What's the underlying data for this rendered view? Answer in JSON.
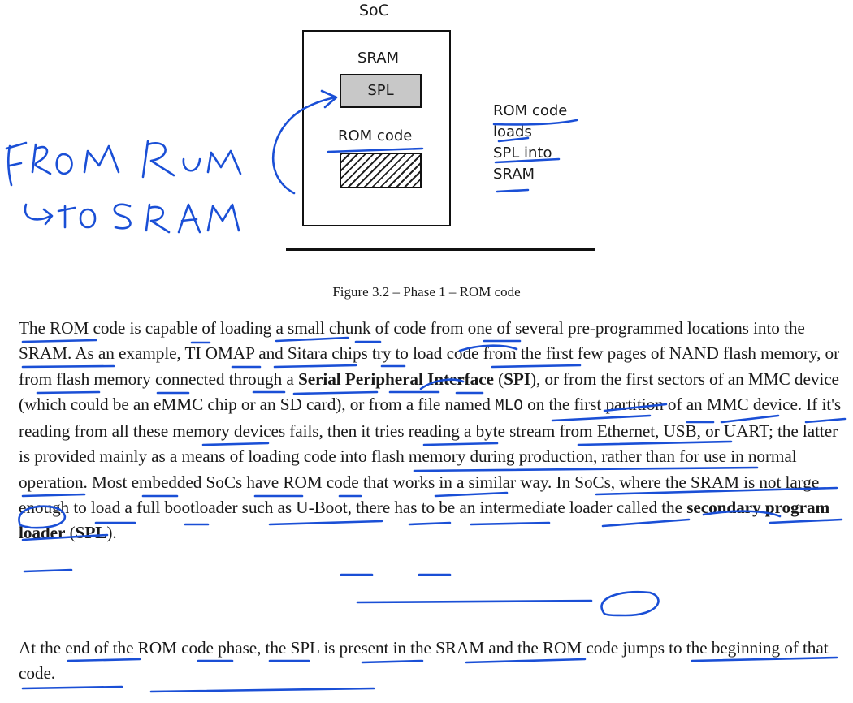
{
  "figure": {
    "soc_label": "SoC",
    "sram_label": "SRAM",
    "spl_label": "SPL",
    "rom_label": "ROM code",
    "side_note_lines": [
      "ROM code",
      "loads",
      "SPL into",
      "SRAM"
    ],
    "handwriting_note_lines": [
      "from ROM",
      "to SRAM"
    ]
  },
  "caption": "Figure 3.2 – Phase 1 – ROM code",
  "para1": {
    "text_a": "The ROM code is capable of loading a small chunk of code from one of several pre-programmed locations into the SRAM. As an example, TI OMAP and Sitara chips try to load code from the first few pages of NAND flash memory, or from flash memory connected through a ",
    "bold_a": "Serial Peripheral Interface",
    "text_b": " (",
    "bold_b": "SPI",
    "text_c": "), or from the first sectors of an MMC device (which could be an eMMC chip or an SD card), or from a file named ",
    "code": "MLO",
    "text_d": " on the first partition of an MMC device. If it's reading from all these memory devices fails, then it tries reading a byte stream from Ethernet, USB, or UART; the latter is provided mainly as a means of loading code into flash memory during production, rather than for use in normal operation. Most embedded SoCs have ROM code that works in a similar way. In SoCs, where the SRAM is not large enough to load a full bootloader such as U-Boot, there has to be an intermediate loader called the ",
    "bold_c": "secondary program loader",
    "text_e": " (",
    "bold_d": "SPL",
    "text_f": ")."
  },
  "para2": "At the end of the ROM code phase, the SPL is present in the SRAM and the ROM code jumps to the beginning of that code.",
  "colors": {
    "ink": "#1a4fd6",
    "text": "#1a1a1a",
    "spl_fill": "#c8c8c8"
  }
}
